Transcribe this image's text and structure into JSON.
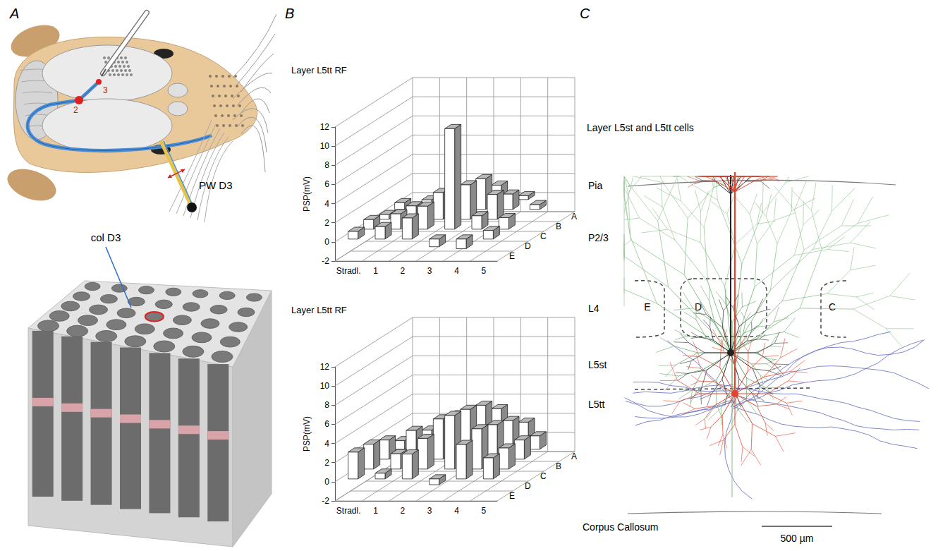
{
  "panels": {
    "A": {
      "letter": "A",
      "whisker_label": "PW D3",
      "column_label": "col D3",
      "markers": [
        "2",
        "3"
      ]
    },
    "B": {
      "letter": "B"
    },
    "C": {
      "letter": "C",
      "title": "Layer L5st and L5tt cells",
      "layers": [
        "Pia",
        "P2/3",
        "L4",
        "L5st",
        "L5tt",
        "Corpus Callosum"
      ],
      "barrels": [
        "E",
        "D",
        "C"
      ],
      "scale_bar": "500 µm"
    }
  },
  "chart_data": [
    {
      "type": "bar",
      "title": "Layer L5tt RF",
      "y_label": "PSP(mV)",
      "categories": [
        "Stradl.",
        "1",
        "2",
        "3",
        "4",
        "5"
      ],
      "rows": [
        "A",
        "B",
        "C",
        "D",
        "E"
      ],
      "values": [
        [
          null,
          0.6,
          0.8,
          1.5,
          0.4,
          null
        ],
        [
          0.7,
          1.0,
          1.8,
          3.2,
          1.6,
          0.5
        ],
        [
          0.5,
          1.4,
          2.8,
          3.6,
          2.6,
          null
        ],
        [
          1.0,
          1.6,
          2.4,
          10.5,
          1.4,
          1.2
        ],
        [
          0.8,
          1.3,
          2.2,
          -0.8,
          -1.0,
          0.9
        ]
      ],
      "color": "#ffffff",
      "ylim": [
        -2,
        12
      ],
      "yticks": [
        -2,
        0,
        2,
        4,
        6,
        8,
        10,
        12
      ],
      "grid": true
    },
    {
      "type": "bar",
      "title": "Layer L5tt RF",
      "y_label": "PSP(mV)",
      "categories": [
        "Stradl.",
        "1",
        "2",
        "3",
        "4",
        "5"
      ],
      "rows": [
        "A",
        "B",
        "C",
        "D",
        "E"
      ],
      "values": [
        [
          null,
          1.5,
          2.6,
          3.2,
          1.8,
          null
        ],
        [
          0.9,
          2.0,
          3.6,
          4.6,
          3.0,
          1.4
        ],
        [
          2.0,
          3.0,
          4.2,
          5.2,
          3.6,
          2.0
        ],
        [
          2.6,
          1.6,
          3.2,
          5.6,
          4.2,
          2.2
        ],
        [
          2.8,
          0.6,
          2.6,
          -0.6,
          3.6,
          2.2
        ]
      ],
      "color": "#ffffff",
      "ylim": [
        -2,
        12
      ],
      "yticks": [
        -2,
        0,
        2,
        4,
        6,
        8,
        10,
        12
      ],
      "grid": true
    }
  ]
}
